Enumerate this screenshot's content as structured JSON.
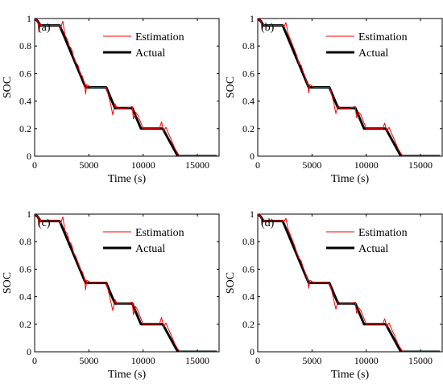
{
  "chart_data": [
    {
      "type": "line",
      "panel_label": "(a)",
      "xlabel": "Time (s)",
      "ylabel": "SOC",
      "xlim": [
        0,
        17000
      ],
      "ylim": [
        0,
        1
      ],
      "xticks": [
        "0",
        "5000",
        "10000",
        "15000"
      ],
      "xtick_values": [
        0,
        5000,
        10000,
        15000
      ],
      "yticks": [
        "0",
        "0.2",
        "0.4",
        "0.6",
        "0.8",
        "1"
      ],
      "ytick_values": [
        0,
        0.2,
        0.4,
        0.6,
        0.8,
        1
      ],
      "legend": {
        "position": "top-right",
        "entries": [
          "Estimation",
          "Actual"
        ]
      },
      "grid": false,
      "series": [
        {
          "name": "Estimation",
          "color": "#ff0000",
          "x": [
            0,
            300,
            400,
            500,
            600,
            2300,
            2400,
            2600,
            2800,
            3000,
            3200,
            3400,
            3600,
            3800,
            4000,
            4200,
            4400,
            4600,
            4700,
            4800,
            5000,
            5200,
            6600,
            6800,
            7000,
            7200,
            7400,
            7600,
            8000,
            8500,
            9000,
            9100,
            9300,
            9500,
            10000,
            11500,
            11700,
            11900,
            12100,
            12300,
            12600,
            12900,
            13200,
            13400,
            13600,
            16800
          ],
          "y": [
            1.0,
            0.98,
            0.9,
            0.96,
            0.95,
            0.95,
            0.93,
            0.98,
            0.88,
            0.85,
            0.8,
            0.78,
            0.72,
            0.68,
            0.66,
            0.6,
            0.58,
            0.52,
            0.45,
            0.52,
            0.51,
            0.5,
            0.5,
            0.44,
            0.38,
            0.3,
            0.38,
            0.35,
            0.35,
            0.35,
            0.36,
            0.27,
            0.32,
            0.3,
            0.2,
            0.2,
            0.25,
            0.18,
            0.21,
            0.17,
            0.12,
            0.06,
            0.02,
            0.0,
            0.0,
            0.0
          ]
        },
        {
          "name": "Actual",
          "color": "#000000",
          "x": [
            0,
            300,
            500,
            600,
            2300,
            4700,
            6600,
            7400,
            9000,
            9800,
            11800,
            13200,
            16800
          ],
          "y": [
            1.0,
            0.98,
            0.95,
            0.95,
            0.95,
            0.5,
            0.5,
            0.35,
            0.35,
            0.2,
            0.2,
            0.0,
            0.0
          ]
        }
      ]
    },
    {
      "type": "line",
      "panel_label": "(b)",
      "xlabel": "Time (s)",
      "ylabel": "SOC",
      "xlim": [
        0,
        17000
      ],
      "ylim": [
        0,
        1
      ],
      "xticks": [
        "0",
        "5000",
        "10000",
        "15000"
      ],
      "xtick_values": [
        0,
        5000,
        10000,
        15000
      ],
      "yticks": [
        "0",
        "0.2",
        "0.4",
        "0.6",
        "0.8",
        "1"
      ],
      "ytick_values": [
        0,
        0.2,
        0.4,
        0.6,
        0.8,
        1
      ],
      "legend": {
        "position": "top-right",
        "entries": [
          "Estimation",
          "Actual"
        ]
      },
      "grid": false,
      "series": [
        {
          "name": "Estimation",
          "color": "#ff0000",
          "x": [
            0,
            300,
            400,
            500,
            600,
            2300,
            2400,
            2600,
            2800,
            3000,
            3200,
            3400,
            3600,
            3800,
            4000,
            4200,
            4400,
            4600,
            4700,
            4800,
            5000,
            5200,
            6600,
            6800,
            7000,
            7200,
            7400,
            7600,
            8000,
            8500,
            9000,
            9100,
            9300,
            9500,
            10000,
            11500,
            11700,
            11900,
            12100,
            12300,
            12600,
            12900,
            13200,
            13400,
            13600,
            16800
          ],
          "y": [
            1.0,
            0.98,
            0.92,
            0.96,
            0.95,
            0.95,
            0.94,
            0.97,
            0.89,
            0.85,
            0.81,
            0.77,
            0.73,
            0.67,
            0.66,
            0.61,
            0.57,
            0.52,
            0.46,
            0.52,
            0.51,
            0.5,
            0.5,
            0.45,
            0.39,
            0.31,
            0.37,
            0.35,
            0.35,
            0.35,
            0.36,
            0.28,
            0.32,
            0.3,
            0.2,
            0.2,
            0.24,
            0.18,
            0.21,
            0.17,
            0.12,
            0.06,
            0.02,
            0.0,
            0.0,
            0.0
          ]
        },
        {
          "name": "Actual",
          "color": "#000000",
          "x": [
            0,
            300,
            500,
            600,
            2300,
            4700,
            6600,
            7400,
            9000,
            9800,
            11800,
            13200,
            16800
          ],
          "y": [
            1.0,
            0.98,
            0.95,
            0.95,
            0.95,
            0.5,
            0.5,
            0.35,
            0.35,
            0.2,
            0.2,
            0.0,
            0.0
          ]
        }
      ]
    },
    {
      "type": "line",
      "panel_label": "(c)",
      "xlabel": "Time (s)",
      "ylabel": "SOC",
      "xlim": [
        0,
        17000
      ],
      "ylim": [
        0,
        1
      ],
      "xticks": [
        "0",
        "5000",
        "10000",
        "15000"
      ],
      "xtick_values": [
        0,
        5000,
        10000,
        15000
      ],
      "yticks": [
        "0",
        "0.2",
        "0.4",
        "0.6",
        "0.8",
        "1"
      ],
      "ytick_values": [
        0,
        0.2,
        0.4,
        0.6,
        0.8,
        1
      ],
      "legend": {
        "position": "top-right",
        "entries": [
          "Estimation",
          "Actual"
        ]
      },
      "grid": false,
      "series": [
        {
          "name": "Estimation",
          "color": "#ff0000",
          "x": [
            0,
            300,
            400,
            500,
            600,
            2300,
            2400,
            2600,
            2800,
            3000,
            3200,
            3400,
            3600,
            3800,
            4000,
            4200,
            4400,
            4600,
            4700,
            4800,
            5000,
            5200,
            6600,
            6800,
            7000,
            7200,
            7400,
            7600,
            8000,
            8500,
            9000,
            9100,
            9300,
            9500,
            10000,
            11500,
            11700,
            11900,
            12100,
            12300,
            12600,
            12900,
            13200,
            13400,
            13600,
            16800
          ],
          "y": [
            1.0,
            0.98,
            0.91,
            0.96,
            0.95,
            0.95,
            0.93,
            0.98,
            0.88,
            0.86,
            0.8,
            0.78,
            0.72,
            0.69,
            0.65,
            0.6,
            0.58,
            0.53,
            0.45,
            0.52,
            0.51,
            0.5,
            0.5,
            0.44,
            0.37,
            0.3,
            0.38,
            0.35,
            0.35,
            0.35,
            0.36,
            0.27,
            0.33,
            0.3,
            0.2,
            0.2,
            0.25,
            0.18,
            0.21,
            0.17,
            0.12,
            0.06,
            0.02,
            0.0,
            0.0,
            0.0
          ]
        },
        {
          "name": "Actual",
          "color": "#000000",
          "x": [
            0,
            300,
            500,
            600,
            2300,
            4700,
            6600,
            7400,
            9000,
            9800,
            11800,
            13200,
            16800
          ],
          "y": [
            1.0,
            0.98,
            0.95,
            0.95,
            0.95,
            0.5,
            0.5,
            0.35,
            0.35,
            0.2,
            0.2,
            0.0,
            0.0
          ]
        }
      ]
    },
    {
      "type": "line",
      "panel_label": "(d)",
      "xlabel": "Time (s)",
      "ylabel": "SOC",
      "xlim": [
        0,
        17000
      ],
      "ylim": [
        0,
        1
      ],
      "xticks": [
        "0",
        "5000",
        "10000",
        "15000"
      ],
      "xtick_values": [
        0,
        5000,
        10000,
        15000
      ],
      "yticks": [
        "0",
        "0.2",
        "0.4",
        "0.6",
        "0.8",
        "1"
      ],
      "ytick_values": [
        0,
        0.2,
        0.4,
        0.6,
        0.8,
        1
      ],
      "legend": {
        "position": "top-right",
        "entries": [
          "Estimation",
          "Actual"
        ]
      },
      "grid": false,
      "series": [
        {
          "name": "Estimation",
          "color": "#ff0000",
          "x": [
            0,
            300,
            400,
            500,
            600,
            2300,
            2400,
            2600,
            2800,
            3000,
            3200,
            3400,
            3600,
            3800,
            4000,
            4200,
            4400,
            4600,
            4700,
            4800,
            5000,
            5200,
            6600,
            6800,
            7000,
            7200,
            7400,
            7600,
            8000,
            8500,
            9000,
            9100,
            9300,
            9500,
            10000,
            11500,
            11700,
            11900,
            12100,
            12300,
            12600,
            12900,
            13200,
            13400,
            13600,
            16800
          ],
          "y": [
            1.0,
            0.98,
            0.92,
            0.96,
            0.95,
            0.95,
            0.94,
            0.97,
            0.89,
            0.85,
            0.81,
            0.77,
            0.72,
            0.68,
            0.66,
            0.61,
            0.57,
            0.52,
            0.46,
            0.52,
            0.51,
            0.5,
            0.5,
            0.45,
            0.38,
            0.31,
            0.37,
            0.35,
            0.35,
            0.35,
            0.36,
            0.28,
            0.32,
            0.3,
            0.2,
            0.2,
            0.24,
            0.18,
            0.21,
            0.17,
            0.12,
            0.06,
            0.02,
            0.0,
            0.0,
            0.0
          ]
        },
        {
          "name": "Actual",
          "color": "#000000",
          "x": [
            0,
            300,
            500,
            600,
            2300,
            4700,
            6600,
            7400,
            9000,
            9800,
            11800,
            13200,
            16800
          ],
          "y": [
            1.0,
            0.98,
            0.95,
            0.95,
            0.95,
            0.5,
            0.5,
            0.35,
            0.35,
            0.2,
            0.2,
            0.0,
            0.0
          ]
        }
      ]
    }
  ]
}
